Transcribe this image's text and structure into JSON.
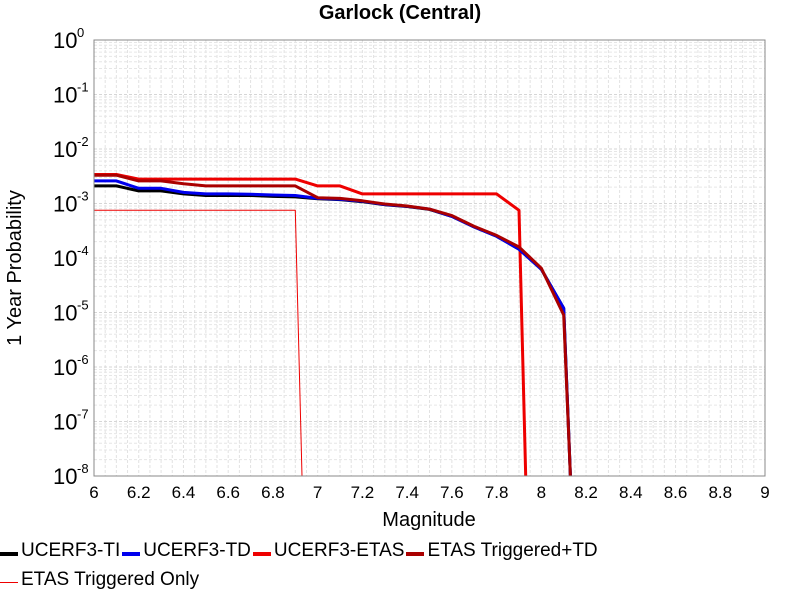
{
  "chart_data": {
    "type": "line",
    "title": "Garlock (Central)",
    "xlabel": "Magnitude",
    "ylabel": "1 Year Probability",
    "xlim": [
      6,
      9
    ],
    "ylim": [
      1e-08,
      1
    ],
    "yscale": "log",
    "grid": true,
    "legend_position": "bottom",
    "x_ticks": [
      "6",
      "6.2",
      "6.4",
      "6.6",
      "6.8",
      "7",
      "7.2",
      "7.4",
      "7.6",
      "7.8",
      "8",
      "8.2",
      "8.4",
      "8.6",
      "8.8",
      "9"
    ],
    "y_ticks": [
      {
        "base": "10",
        "exp": "0"
      },
      {
        "base": "10",
        "exp": "-1"
      },
      {
        "base": "10",
        "exp": "-2"
      },
      {
        "base": "10",
        "exp": "-3"
      },
      {
        "base": "10",
        "exp": "-4"
      },
      {
        "base": "10",
        "exp": "-5"
      },
      {
        "base": "10",
        "exp": "-6"
      },
      {
        "base": "10",
        "exp": "-7"
      },
      {
        "base": "10",
        "exp": "-8"
      }
    ],
    "series": [
      {
        "name": "UCERF3-TI",
        "color": "#000000",
        "x": [
          6.0,
          6.1,
          6.2,
          6.3,
          6.4,
          6.5,
          6.6,
          6.7,
          6.8,
          6.9,
          7.0,
          7.1,
          7.2,
          7.3,
          7.4,
          7.5,
          7.6,
          7.7,
          7.8,
          7.9,
          8.0,
          8.1,
          8.13
        ],
        "y": [
          0.0021,
          0.0021,
          0.0017,
          0.0017,
          0.0015,
          0.0014,
          0.0014,
          0.0014,
          0.00135,
          0.00132,
          0.00122,
          0.00118,
          0.00108,
          0.00095,
          0.00088,
          0.00078,
          0.00058,
          0.00037,
          0.00025,
          0.000145,
          6.2e-05,
          1.2e-05,
          1e-08
        ]
      },
      {
        "name": "UCERF3-TD",
        "color": "#0000ee",
        "x": [
          6.0,
          6.1,
          6.2,
          6.3,
          6.4,
          6.5,
          6.6,
          6.7,
          6.8,
          6.9,
          7.0,
          7.1,
          7.2,
          7.3,
          7.4,
          7.5,
          7.6,
          7.7,
          7.8,
          7.9,
          8.0,
          8.1,
          8.13
        ],
        "y": [
          0.0026,
          0.0026,
          0.0019,
          0.0019,
          0.0016,
          0.0015,
          0.0015,
          0.00148,
          0.00143,
          0.0014,
          0.00124,
          0.0012,
          0.0011,
          0.00096,
          0.00089,
          0.00079,
          0.00058,
          0.00037,
          0.00025,
          0.000145,
          6.2e-05,
          1.2e-05,
          1e-08
        ]
      },
      {
        "name": "UCERF3-ETAS",
        "color": "#ee0000",
        "x": [
          6.0,
          6.1,
          6.2,
          6.3,
          6.4,
          6.5,
          6.6,
          6.7,
          6.8,
          6.9,
          7.0,
          7.1,
          7.2,
          7.3,
          7.4,
          7.5,
          7.6,
          7.7,
          7.8,
          7.9,
          7.93
        ],
        "y": [
          0.0034,
          0.0034,
          0.0028,
          0.0028,
          0.0028,
          0.0028,
          0.0028,
          0.0028,
          0.0028,
          0.0028,
          0.0021,
          0.0021,
          0.0015,
          0.0015,
          0.0015,
          0.0015,
          0.0015,
          0.0015,
          0.0015,
          0.00075,
          1e-08
        ]
      },
      {
        "name": "ETAS Triggered+TD",
        "color": "#aa0000",
        "x": [
          6.0,
          6.1,
          6.2,
          6.3,
          6.4,
          6.5,
          6.6,
          6.7,
          6.8,
          6.9,
          7.0,
          7.1,
          7.2,
          7.3,
          7.4,
          7.5,
          7.6,
          7.7,
          7.8,
          7.9,
          8.0,
          8.1,
          8.13
        ],
        "y": [
          0.0033,
          0.0033,
          0.0026,
          0.0026,
          0.0023,
          0.0021,
          0.0021,
          0.0021,
          0.0021,
          0.0021,
          0.00128,
          0.00124,
          0.00112,
          0.00098,
          0.0009,
          0.00079,
          0.0006,
          0.00038,
          0.00026,
          0.00016,
          6.5e-05,
          9e-06,
          1e-08
        ]
      },
      {
        "name": "ETAS Triggered Only",
        "color": "#ee0000",
        "thin": true,
        "x": [
          6.0,
          6.9,
          6.93
        ],
        "y": [
          0.00075,
          0.00075,
          1e-08
        ]
      }
    ]
  }
}
